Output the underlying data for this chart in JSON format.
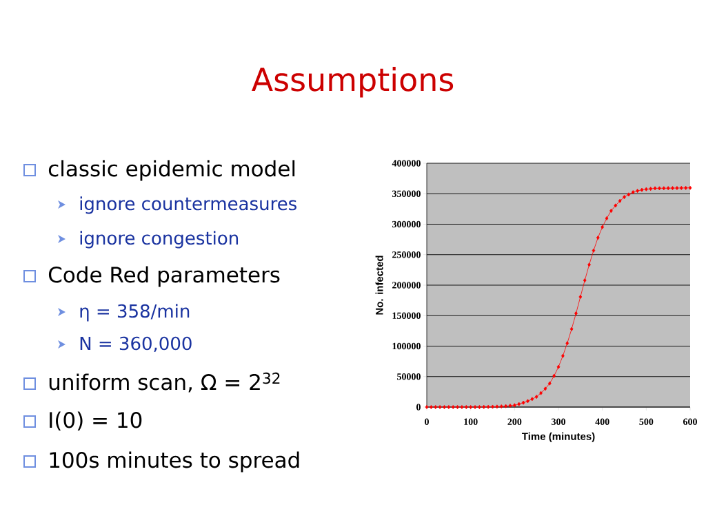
{
  "chart_data": {
    "type": "line",
    "title": "Assumptions",
    "annotations": [
      "classic epidemic model",
      "ignore countermeasures",
      "ignore congestion",
      "Code Red parameters",
      "η = 358/min",
      "N = 360,000",
      "uniform scan, Ω = 2$^{32}$",
      "I(0) = 10",
      "100s minutes to spread"
    ],
    "xlabel": "Time (minutes)",
    "ylabel": "No. infected",
    "x": [
      0,
      10,
      20,
      30,
      40,
      50,
      60,
      70,
      80,
      90,
      100,
      110,
      120,
      130,
      140,
      150,
      160,
      170,
      180,
      190,
      200,
      210,
      220,
      230,
      240,
      250,
      260,
      270,
      280,
      290,
      300,
      310,
      320,
      330,
      340,
      350,
      360,
      370,
      380,
      390,
      400,
      410,
      420,
      430,
      440,
      450,
      460,
      470,
      480,
      490,
      500,
      510,
      520,
      530,
      540,
      550,
      560,
      570,
      580,
      590,
      600
    ],
    "series": [
      {
        "color": "#ff0000",
        "values": [
          0,
          0,
          0,
          0,
          0,
          0,
          0,
          0,
          0,
          0,
          0,
          0,
          0,
          200,
          300,
          500,
          700,
          1000,
          1500,
          2300,
          3000,
          4900,
          7200,
          9800,
          13200,
          16900,
          23000,
          30100,
          38800,
          51200,
          65900,
          84000,
          104700,
          128000,
          153700,
          180800,
          207900,
          233500,
          256800,
          277900,
          295300,
          309600,
          322000,
          330600,
          338200,
          344600,
          348700,
          352500,
          354700,
          356300,
          357400,
          358100,
          358900,
          358900,
          359000,
          359100,
          359200,
          359300,
          359400,
          359500,
          359600
        ]
      }
    ],
    "xlim": [
      0,
      600
    ],
    "ylim": [
      0,
      400000
    ],
    "xticks": [
      0,
      100,
      200,
      300,
      400,
      500,
      600
    ],
    "yticks": [
      0,
      50000,
      100000,
      150000,
      200000,
      250000,
      300000,
      350000,
      400000
    ],
    "grid": "y",
    "marker": "diamond",
    "line_style": "solid"
  }
}
